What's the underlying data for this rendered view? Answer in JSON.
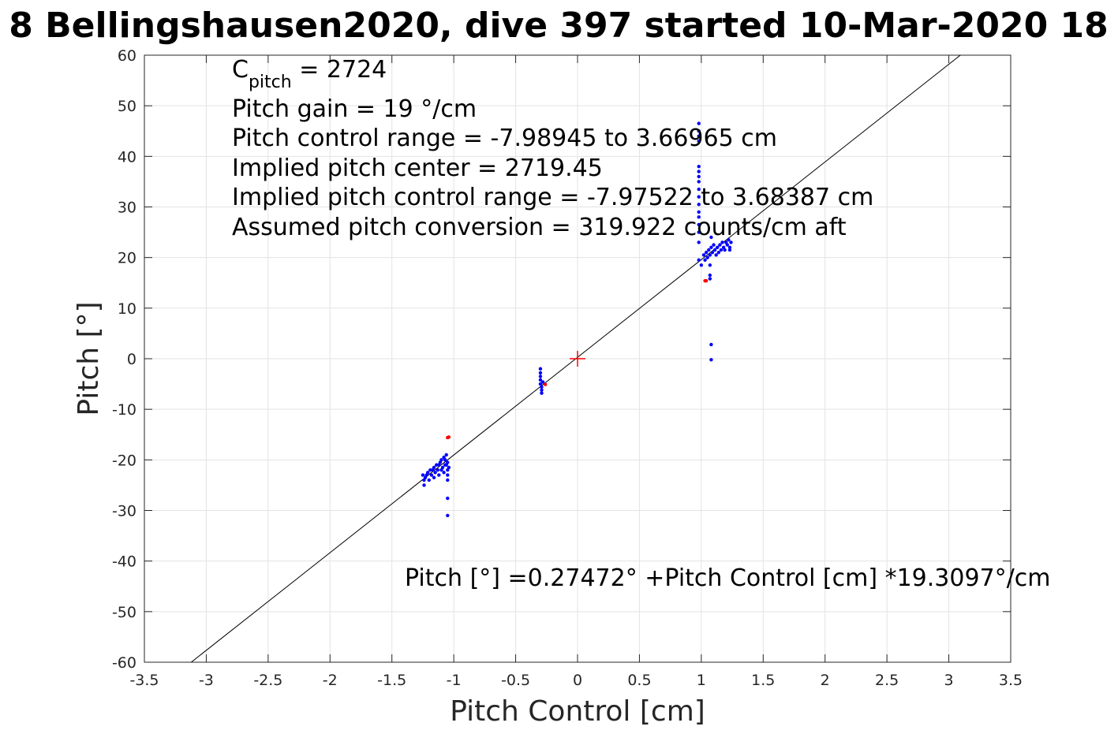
{
  "title": "8 Bellingshausen2020, dive 397 started 10-Mar-2020 18",
  "chart_data": {
    "type": "scatter",
    "xlabel": "Pitch Control [cm]",
    "ylabel": "Pitch [°]",
    "xlim": [
      -3.5,
      3.5
    ],
    "ylim": [
      -60,
      60
    ],
    "xticks": [
      -3.5,
      -3,
      -2.5,
      -2,
      -1.5,
      -1,
      -0.5,
      0,
      0.5,
      1,
      1.5,
      2,
      2.5,
      3,
      3.5
    ],
    "xtick_labels": [
      "-3.5",
      "-3",
      "-2.5",
      "-2",
      "-1.5",
      "-1",
      "-0.5",
      "0",
      "0.5",
      "1",
      "1.5",
      "2",
      "2.5",
      "3",
      "3.5"
    ],
    "yticks": [
      -60,
      -50,
      -40,
      -30,
      -20,
      -10,
      0,
      10,
      20,
      30,
      40,
      50,
      60
    ],
    "ytick_labels": [
      "-60",
      "-50",
      "-40",
      "-30",
      "-20",
      "-10",
      "0",
      "10",
      "20",
      "30",
      "40",
      "50",
      "60"
    ],
    "grid": true,
    "fit_line": {
      "intercept": 0.27472,
      "slope": 19.3097,
      "color": "#000000"
    },
    "center_marker": {
      "x": 0,
      "y": 0,
      "color": "#ff0000"
    },
    "annotations": {
      "c_pitch_main": "C",
      "c_pitch_sub": "pitch",
      "c_pitch_value": " = 2724",
      "lines": [
        "Pitch gain = 19 °/cm",
        "Pitch control range = -7.98945 to 3.66965 cm",
        "Implied pitch center = 2719.45",
        "Implied pitch control range = -7.97522 to 3.68387 cm",
        "Assumed pitch conversion = 319.922 counts/cm aft"
      ],
      "equation": "Pitch [°] =0.27472° +Pitch Control [cm] *19.3097°/cm"
    },
    "series": [
      {
        "color": "#0000ff",
        "points": [
          [
            -1.25,
            -23
          ],
          [
            -1.24,
            -24
          ],
          [
            -1.24,
            -25
          ],
          [
            -1.23,
            -23.5
          ],
          [
            -1.22,
            -23
          ],
          [
            -1.21,
            -22.5
          ],
          [
            -1.2,
            -24
          ],
          [
            -1.19,
            -22
          ],
          [
            -1.18,
            -23
          ],
          [
            -1.17,
            -22
          ],
          [
            -1.16,
            -21.5
          ],
          [
            -1.16,
            -23.5
          ],
          [
            -1.15,
            -22.5
          ],
          [
            -1.14,
            -21
          ],
          [
            -1.13,
            -22
          ],
          [
            -1.12,
            -21
          ],
          [
            -1.12,
            -23
          ],
          [
            -1.11,
            -20.5
          ],
          [
            -1.1,
            -22
          ],
          [
            -1.1,
            -20
          ],
          [
            -1.09,
            -21.5
          ],
          [
            -1.08,
            -19.5
          ],
          [
            -1.08,
            -22.5
          ],
          [
            -1.07,
            -20
          ],
          [
            -1.07,
            -21
          ],
          [
            -1.06,
            -19
          ],
          [
            -1.06,
            -21
          ],
          [
            -1.05,
            -22
          ],
          [
            -1.05,
            -23
          ],
          [
            -1.05,
            -24
          ],
          [
            -1.05,
            -20.5
          ],
          [
            -1.04,
            -21.5
          ],
          [
            -1.05,
            -27.6
          ],
          [
            -1.05,
            -31
          ],
          [
            -0.3,
            -2
          ],
          [
            -0.3,
            -2.8
          ],
          [
            -0.3,
            -3.5
          ],
          [
            -0.3,
            -4.2
          ],
          [
            -0.3,
            -5
          ],
          [
            -0.29,
            -5.6
          ],
          [
            -0.29,
            -6.2
          ],
          [
            -0.29,
            -6.8
          ],
          [
            -0.28,
            -4.6
          ],
          [
            0.98,
            46.5
          ],
          [
            0.98,
            45
          ],
          [
            0.98,
            44
          ],
          [
            0.98,
            43
          ],
          [
            0.98,
            38
          ],
          [
            0.98,
            37
          ],
          [
            0.98,
            36
          ],
          [
            0.98,
            35
          ],
          [
            0.98,
            33.5
          ],
          [
            0.98,
            32
          ],
          [
            0.98,
            30.5
          ],
          [
            0.98,
            29
          ],
          [
            0.98,
            28
          ],
          [
            0.98,
            26.5
          ],
          [
            0.98,
            25
          ],
          [
            0.98,
            23
          ],
          [
            0.98,
            19.5
          ],
          [
            1.0,
            18.5
          ],
          [
            1.02,
            20.5
          ],
          [
            1.03,
            19.5
          ],
          [
            1.04,
            21
          ],
          [
            1.05,
            20
          ],
          [
            1.06,
            21.5
          ],
          [
            1.07,
            20.5
          ],
          [
            1.07,
            18.5
          ],
          [
            1.07,
            16.5
          ],
          [
            1.07,
            15.8
          ],
          [
            1.08,
            22
          ],
          [
            1.08,
            24
          ],
          [
            1.09,
            21
          ],
          [
            1.1,
            22.5
          ],
          [
            1.11,
            21.5
          ],
          [
            1.12,
            20.5
          ],
          [
            1.13,
            22
          ],
          [
            1.14,
            21
          ],
          [
            1.15,
            22.5
          ],
          [
            1.16,
            21.5
          ],
          [
            1.17,
            23
          ],
          [
            1.18,
            22
          ],
          [
            1.19,
            21.5
          ],
          [
            1.2,
            23
          ],
          [
            1.21,
            22.5
          ],
          [
            1.22,
            23.5
          ],
          [
            1.23,
            22
          ],
          [
            1.23,
            21.5
          ],
          [
            1.24,
            23
          ],
          [
            1.08,
            2.8
          ],
          [
            1.08,
            -0.2
          ]
        ]
      },
      {
        "color": "#ff0000",
        "points": [
          [
            -1.04,
            -15.5
          ],
          [
            -1.05,
            -15.6
          ],
          [
            -0.26,
            -5.1
          ],
          [
            1.03,
            15.4
          ],
          [
            1.04,
            15.4
          ]
        ]
      }
    ]
  }
}
